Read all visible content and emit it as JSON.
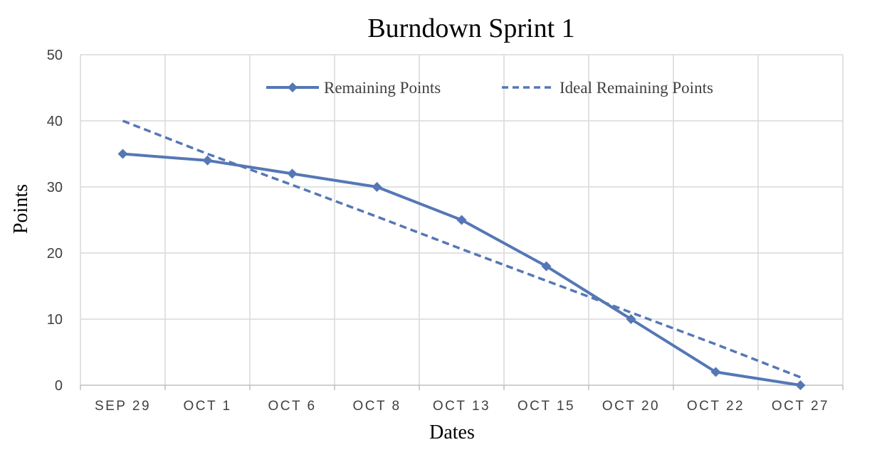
{
  "chart_data": {
    "type": "line",
    "title": "Burndown Sprint 1",
    "xlabel": "Dates",
    "ylabel": "Points",
    "categories": [
      "SEP 29",
      "OCT 1",
      "OCT 6",
      "OCT 8",
      "OCT 13",
      "OCT 15",
      "OCT 20",
      "OCT 22",
      "OCT 27"
    ],
    "y_ticks": [
      "0",
      "10",
      "20",
      "30",
      "40",
      "50"
    ],
    "ylim": [
      0,
      50
    ],
    "grid": true,
    "legend_position": "top",
    "series": [
      {
        "name": "Remaining Points",
        "style": "solid-diamond",
        "color": "#5577b5",
        "values": [
          35,
          34,
          32,
          30,
          25,
          18,
          10,
          2,
          0
        ]
      },
      {
        "name": "Ideal Remaining Points",
        "style": "dashed",
        "color": "#5577b5",
        "values": [
          40,
          35,
          30.3,
          25.5,
          20.6,
          15.8,
          11,
          6.2,
          1.2
        ]
      }
    ]
  }
}
